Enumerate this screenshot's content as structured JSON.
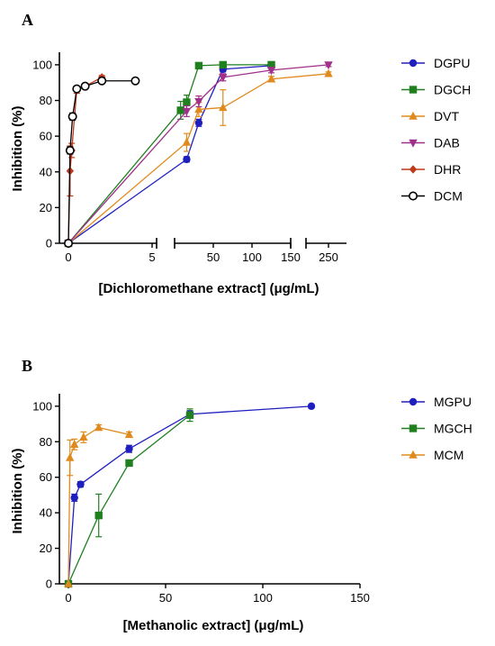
{
  "chart_data": [
    {
      "panel": "A",
      "type": "line",
      "ylabel": "Inhibition (%)",
      "xlabel": "[Dichloromethane extract] (μg/mL)",
      "ylim": [
        0,
        105
      ],
      "yticks": [
        "0",
        "20",
        "40",
        "60",
        "80",
        "100"
      ],
      "xaxis_segments": [
        {
          "range": [
            -0.5,
            5.3
          ],
          "ticks": [
            0,
            5
          ],
          "tick_labels": [
            "0",
            "5"
          ]
        },
        {
          "range": [
            0,
            150
          ],
          "ticks": [
            50,
            100,
            150
          ],
          "tick_labels": [
            "50",
            "100",
            "150"
          ]
        },
        {
          "range": [
            200,
            290
          ],
          "ticks": [
            250
          ],
          "tick_labels": [
            "250"
          ]
        }
      ],
      "legend_position": "right",
      "series": [
        {
          "name": "DGPU",
          "color": "#1f1fbf",
          "marker": "circle",
          "points": [
            [
              0,
              0
            ],
            [
              15.6,
              47
            ],
            [
              31.25,
              67.5
            ],
            [
              62.5,
              97.5
            ],
            [
              125,
              99.5
            ]
          ],
          "errors": [
            0,
            1.5,
            2,
            1.5,
            1
          ]
        },
        {
          "name": "DGCH",
          "color": "#208020",
          "marker": "square",
          "points": [
            [
              0,
              0
            ],
            [
              7.8,
              74.5
            ],
            [
              15.6,
              79
            ],
            [
              31.25,
              99.5
            ],
            [
              62.5,
              100
            ],
            [
              125,
              100
            ]
          ],
          "errors": [
            0,
            5,
            4,
            1,
            0.5,
            0.5
          ]
        },
        {
          "name": "DVT",
          "color": "#e08a1e",
          "marker": "triangle-up",
          "points": [
            [
              0,
              0
            ],
            [
              15.6,
              56.5
            ],
            [
              31.25,
              75
            ],
            [
              62.5,
              76
            ],
            [
              125,
              92
            ],
            [
              250,
              95
            ]
          ],
          "errors": [
            0,
            5,
            4,
            10,
            1.5,
            1
          ]
        },
        {
          "name": "DAB",
          "color": "#a0308a",
          "marker": "triangle-down",
          "points": [
            [
              0,
              0
            ],
            [
              15.6,
              74
            ],
            [
              31.25,
              79.5
            ],
            [
              62.5,
              93
            ],
            [
              125,
              97
            ],
            [
              250,
              100
            ]
          ],
          "errors": [
            0,
            3,
            3,
            2,
            1.5,
            1
          ]
        },
        {
          "name": "DHR",
          "color": "#c0391b",
          "marker": "diamond",
          "points": [
            [
              0,
              0
            ],
            [
              0.1,
              40.5
            ],
            [
              0.2,
              52
            ],
            [
              0.5,
              86
            ],
            [
              1,
              88
            ],
            [
              2,
              93
            ]
          ],
          "errors": [
            0,
            14,
            4,
            2,
            1.5,
            1
          ]
        },
        {
          "name": "DCM",
          "color": "#000000",
          "marker": "open-circle",
          "points": [
            [
              0,
              0
            ],
            [
              0.1,
              52
            ],
            [
              0.25,
              71
            ],
            [
              0.5,
              86.5
            ],
            [
              1,
              88
            ],
            [
              2,
              91
            ],
            [
              4,
              91
            ]
          ],
          "errors": [
            0,
            2,
            2,
            1,
            1,
            1,
            1
          ]
        }
      ]
    },
    {
      "panel": "B",
      "type": "line",
      "ylabel": "Inhibition (%)",
      "xlabel": "[Methanolic extract] (μg/mL)",
      "xlim": [
        0,
        150
      ],
      "ylim": [
        0,
        105
      ],
      "xticks": [
        "0",
        "50",
        "100",
        "150"
      ],
      "yticks": [
        "0",
        "20",
        "40",
        "60",
        "80",
        "100"
      ],
      "legend_position": "right",
      "series": [
        {
          "name": "MGPU",
          "color": "#1f1fbf",
          "marker": "circle",
          "points": [
            [
              0,
              0
            ],
            [
              3.1,
              48.5
            ],
            [
              6.25,
              56
            ],
            [
              31.25,
              76
            ],
            [
              62.5,
              95.5
            ],
            [
              125,
              100
            ]
          ],
          "errors": [
            0,
            2,
            1.5,
            2,
            2,
            1
          ]
        },
        {
          "name": "MGCH",
          "color": "#208020",
          "marker": "square",
          "points": [
            [
              0,
              0
            ],
            [
              15.6,
              38.5
            ],
            [
              31.25,
              68
            ],
            [
              62.5,
              95
            ]
          ],
          "errors": [
            0,
            12,
            1.5,
            3.5
          ]
        },
        {
          "name": "MCM",
          "color": "#e08a1e",
          "marker": "triangle-up",
          "points": [
            [
              0,
              0
            ],
            [
              0.8,
              71
            ],
            [
              3.1,
              78.5
            ],
            [
              7.8,
              82.5
            ],
            [
              15.6,
              88
            ],
            [
              31.25,
              84
            ]
          ],
          "errors": [
            0,
            10,
            3,
            3,
            1.5,
            1.5
          ]
        }
      ]
    }
  ]
}
